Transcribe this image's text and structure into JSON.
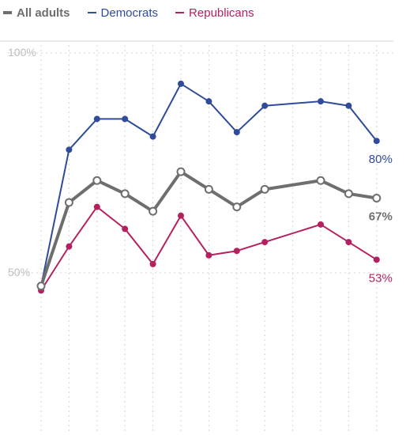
{
  "chart_data": {
    "type": "line",
    "title": "",
    "xlabel": "",
    "ylabel": "",
    "ylim": [
      50,
      100
    ],
    "y_ticks": [
      {
        "value": 100,
        "label": "100%"
      },
      {
        "value": 50,
        "label": "50%"
      }
    ],
    "grid": "dotted vertical and horizontal",
    "legend_position": "top-left",
    "x": [
      1,
      2,
      3,
      4,
      5,
      6,
      7,
      8,
      9,
      11,
      12,
      13
    ],
    "series": [
      {
        "name": "All adults",
        "color": "#6e6e6e",
        "marker": "hollow",
        "end_label": "67%",
        "values": [
          47,
          66,
          71,
          68,
          64,
          73,
          69,
          65,
          69,
          71,
          68,
          67
        ]
      },
      {
        "name": "Democrats",
        "color": "#2f4b9a",
        "marker": "filled",
        "end_label": "80%",
        "values": [
          47,
          78,
          85,
          85,
          81,
          93,
          89,
          82,
          88,
          89,
          88,
          80
        ]
      },
      {
        "name": "Republicans",
        "color": "#b5215f",
        "marker": "filled",
        "end_label": "53%",
        "values": [
          46,
          56,
          65,
          60,
          52,
          63,
          54,
          55,
          57,
          61,
          57,
          53
        ]
      }
    ]
  }
}
